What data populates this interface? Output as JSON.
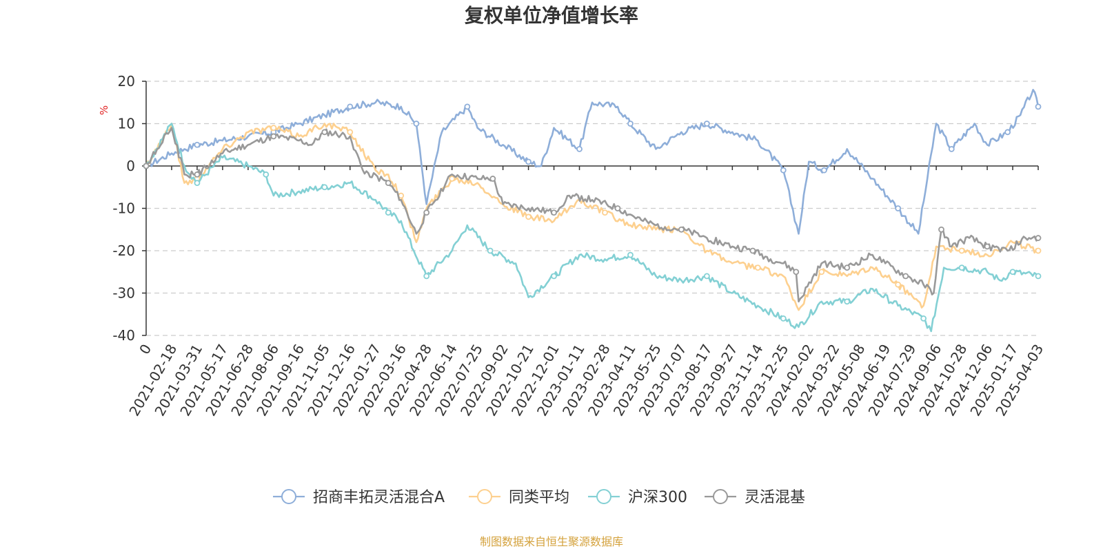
{
  "chart_data": {
    "type": "line",
    "title": "复权单位净值增长率",
    "ylabel": "%",
    "ylim": [
      -40,
      20
    ],
    "yticks": [
      20,
      10,
      0,
      -10,
      -20,
      -30,
      -40
    ],
    "ytick_labels": [
      "20",
      "10",
      "0",
      "-10",
      "-20",
      "-30",
      "-40"
    ],
    "x_tick_labels": [
      "0",
      "2021-02-18",
      "2021-03-31",
      "2021-05-17",
      "2021-06-28",
      "2021-08-06",
      "2021-09-16",
      "2021-11-05",
      "2021-12-16",
      "2022-01-27",
      "2022-03-16",
      "2022-04-28",
      "2022-06-14",
      "2022-07-25",
      "2022-09-02",
      "2022-10-21",
      "2022-12-01",
      "2023-01-11",
      "2023-02-28",
      "2023-04-11",
      "2023-05-25",
      "2023-07-07",
      "2023-08-17",
      "2023-09-27",
      "2023-11-14",
      "2023-12-25",
      "2024-02-02",
      "2024-03-22",
      "2024-05-08",
      "2024-06-19",
      "2024-07-29",
      "2024-09-06",
      "2024-10-28",
      "2024-12-06",
      "2025-01-17",
      "2025-04-03"
    ],
    "x_range": [
      0,
      35
    ],
    "grid": true,
    "legend_position": "bottom",
    "series": [
      {
        "name": "招商丰拓灵活混合A",
        "color": "#8eaed9",
        "values": [
          0,
          3,
          4,
          5,
          6,
          7,
          8,
          10,
          12,
          14,
          15,
          14,
          10,
          -9,
          8,
          14,
          9,
          5,
          1,
          0,
          9,
          4,
          15,
          14,
          10,
          4,
          8,
          10,
          8,
          6,
          -1,
          -16,
          1,
          -1,
          4,
          -3,
          -10,
          -16,
          10,
          4,
          10,
          5,
          8,
          12,
          18,
          14
        ],
        "x": [
          0,
          1,
          1.5,
          2,
          3,
          4,
          5,
          6,
          7,
          8,
          9,
          10,
          10.6,
          11,
          11.6,
          12.6,
          13,
          14,
          15,
          15.5,
          16,
          17,
          17.5,
          18.5,
          19,
          20,
          21,
          22,
          23,
          24,
          25,
          25.6,
          26,
          26.6,
          27.5,
          28.5,
          29.5,
          30.3,
          31,
          31.6,
          32.5,
          33,
          33.8,
          34.3,
          34.8,
          35
        ]
      },
      {
        "name": "同类平均",
        "color": "#fdd08f",
        "values": [
          0,
          10,
          -4,
          -3,
          4,
          8,
          9,
          7,
          10,
          8,
          -1,
          -2,
          -7,
          -18,
          -10,
          -3,
          -4,
          -9,
          -12,
          -13,
          -8,
          -11,
          -14,
          -15,
          -15,
          -20,
          -23,
          -24,
          -26,
          -34,
          -25,
          -26,
          -24,
          -28,
          -33,
          -19,
          -20,
          -21,
          -18,
          -20
        ],
        "x": [
          0,
          1,
          1.5,
          2,
          3,
          4,
          5,
          6,
          7,
          8,
          9,
          9.5,
          10,
          10.6,
          11,
          12,
          13,
          14,
          15,
          16,
          17,
          18,
          19,
          20,
          21,
          22,
          23,
          24,
          25,
          25.6,
          26.5,
          27.5,
          28.5,
          29.5,
          30.5,
          31,
          32,
          33,
          34,
          35
        ]
      },
      {
        "name": "沪深300",
        "color": "#83d0d4",
        "values": [
          0,
          10,
          0,
          -4,
          2,
          0,
          -2,
          -7,
          -6,
          -5,
          -4,
          -8,
          -11,
          -13,
          -20,
          -26,
          -20,
          -14,
          -20,
          -23,
          -31,
          -26,
          -21,
          -22,
          -21,
          -26,
          -27,
          -26,
          -30,
          -33,
          -36,
          -38,
          -32,
          -32,
          -29,
          -33,
          -36,
          -39,
          -24,
          -24,
          -25,
          -27,
          -25,
          -26
        ],
        "x": [
          0,
          1,
          1.5,
          2,
          3,
          4,
          4.7,
          5,
          6,
          7,
          8,
          9,
          9.5,
          10,
          10.5,
          11,
          12,
          12.6,
          13.5,
          14.5,
          15,
          16,
          17,
          18,
          19,
          20,
          21,
          22,
          23,
          24,
          25,
          25.6,
          26.5,
          27.5,
          28.5,
          29.5,
          30.5,
          30.8,
          31.3,
          32,
          33,
          33.5,
          34,
          35
        ]
      },
      {
        "name": "灵活混基",
        "color": "#999999",
        "values": [
          0,
          9,
          -2,
          -2,
          3,
          5,
          7,
          6,
          5,
          8,
          7,
          -1,
          -4,
          -8,
          -16,
          -11,
          -2,
          -3,
          -3,
          -9,
          -10,
          -11,
          -7,
          -8,
          -10,
          -13,
          -14,
          -15,
          -17,
          -19,
          -20,
          -22,
          -23,
          -25,
          -32,
          -23,
          -24,
          -21,
          -23,
          -26,
          -28,
          -30,
          -15,
          -19,
          -17,
          -19,
          -20,
          -17,
          -17
        ],
        "x": [
          0,
          1,
          1.5,
          2,
          3,
          4,
          5,
          6,
          6.5,
          7,
          8,
          8.5,
          9.5,
          10,
          10.6,
          11,
          12,
          13,
          13.6,
          14,
          15,
          16,
          16.6,
          17.5,
          18.5,
          19.5,
          20,
          21,
          22,
          23,
          23.8,
          24.5,
          25,
          25.5,
          25.6,
          26.5,
          27.5,
          28.5,
          29,
          29.8,
          30.5,
          30.9,
          31.2,
          31.6,
          32.3,
          33,
          33.8,
          34.5,
          35
        ]
      }
    ]
  },
  "source_text": "制图数据来自恒生聚源数据库"
}
